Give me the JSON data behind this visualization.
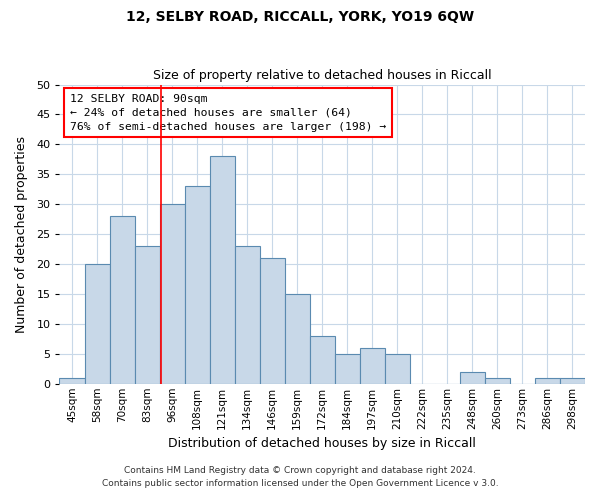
{
  "title": "12, SELBY ROAD, RICCALL, YORK, YO19 6QW",
  "subtitle": "Size of property relative to detached houses in Riccall",
  "xlabel": "Distribution of detached houses by size in Riccall",
  "ylabel": "Number of detached properties",
  "bar_color": "#c8d8e8",
  "bar_edge_color": "#5a8ab0",
  "categories": [
    "45sqm",
    "58sqm",
    "70sqm",
    "83sqm",
    "96sqm",
    "108sqm",
    "121sqm",
    "134sqm",
    "146sqm",
    "159sqm",
    "172sqm",
    "184sqm",
    "197sqm",
    "210sqm",
    "222sqm",
    "235sqm",
    "248sqm",
    "260sqm",
    "273sqm",
    "286sqm",
    "298sqm"
  ],
  "values": [
    1,
    20,
    28,
    23,
    30,
    33,
    38,
    23,
    21,
    15,
    8,
    5,
    6,
    5,
    0,
    0,
    2,
    1,
    0,
    1,
    1
  ],
  "ylim": [
    0,
    50
  ],
  "yticks": [
    0,
    5,
    10,
    15,
    20,
    25,
    30,
    35,
    40,
    45,
    50
  ],
  "annotation_title": "12 SELBY ROAD: 90sqm",
  "annotation_line1": "← 24% of detached houses are smaller (64)",
  "annotation_line2": "76% of semi-detached houses are larger (198) →",
  "footnote1": "Contains HM Land Registry data © Crown copyright and database right 2024.",
  "footnote2": "Contains public sector information licensed under the Open Government Licence v 3.0.",
  "background_color": "#ffffff",
  "grid_color": "#c8d8e8",
  "vline_x_index": 3.54
}
